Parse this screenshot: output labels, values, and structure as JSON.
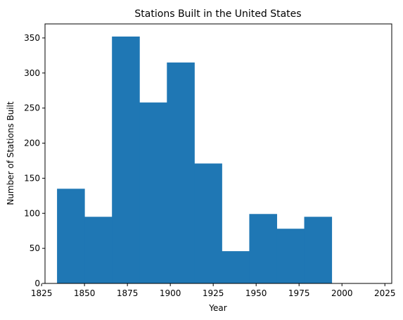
{
  "chart_data": {
    "type": "bar",
    "title": "Stations Built in the United States",
    "xlabel": "Year",
    "ylabel": "Number of Stations Built",
    "xlim": [
      1827,
      2029
    ],
    "ylim": [
      0,
      370
    ],
    "xticks": [
      1825,
      1850,
      1875,
      1900,
      1925,
      1950,
      1975,
      2000,
      2025
    ],
    "yticks": [
      0,
      50,
      100,
      150,
      200,
      250,
      300,
      350
    ],
    "grid": false,
    "bar_color": "#1f77b4",
    "bins": [
      {
        "start": 1834,
        "end": 1850,
        "value": 135
      },
      {
        "start": 1850,
        "end": 1866,
        "value": 95
      },
      {
        "start": 1866,
        "end": 1882,
        "value": 352
      },
      {
        "start": 1882,
        "end": 1898,
        "value": 258
      },
      {
        "start": 1898,
        "end": 1914,
        "value": 315
      },
      {
        "start": 1914,
        "end": 1930,
        "value": 171
      },
      {
        "start": 1930,
        "end": 1946,
        "value": 46
      },
      {
        "start": 1946,
        "end": 1962,
        "value": 99
      },
      {
        "start": 1962,
        "end": 1978,
        "value": 78
      },
      {
        "start": 1978,
        "end": 1994,
        "value": 95
      }
    ]
  }
}
